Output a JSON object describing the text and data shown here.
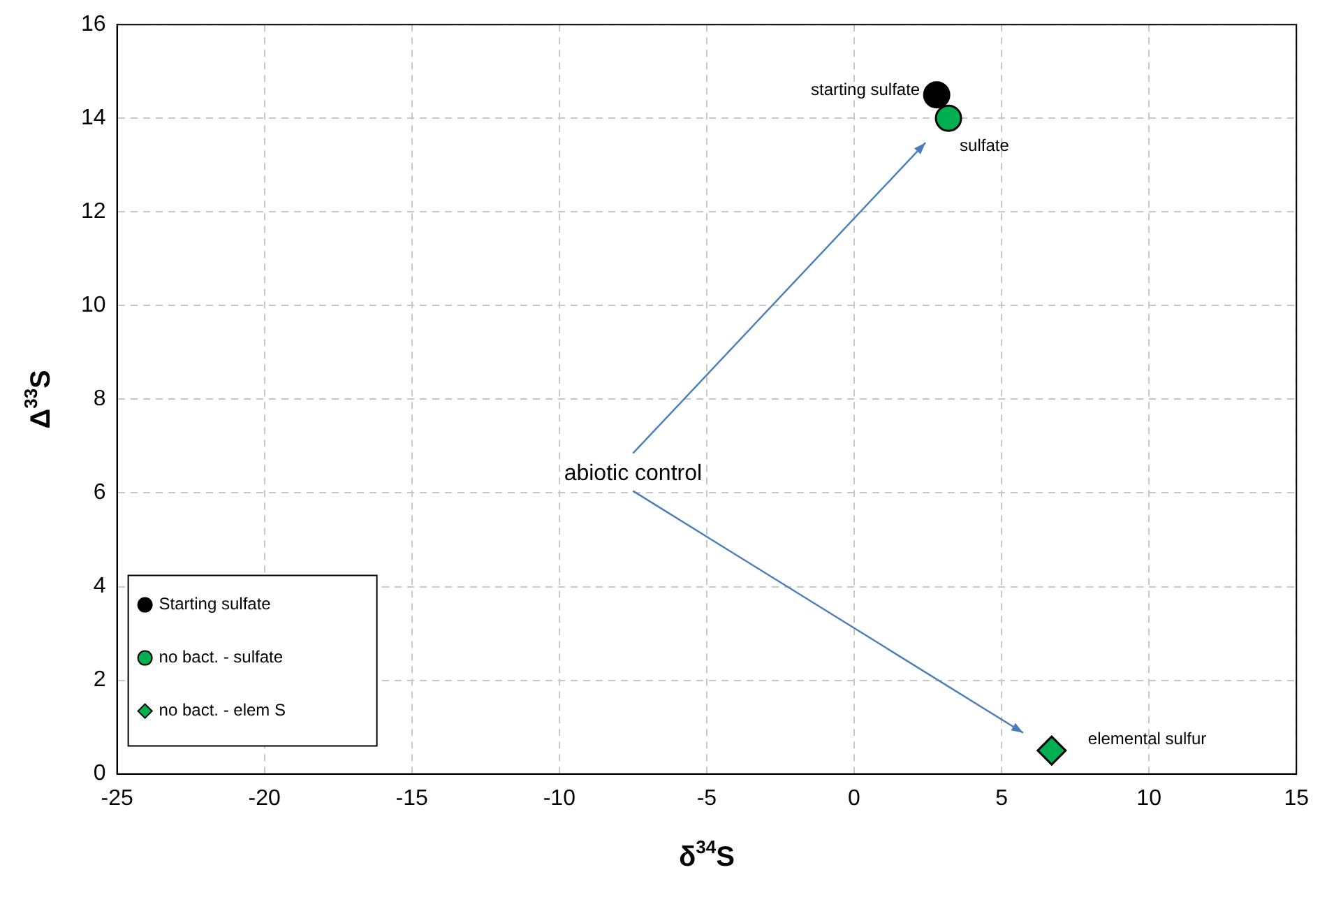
{
  "chart_data": {
    "type": "scatter",
    "xlabel": "δ$^{34}$S",
    "ylabel": "Δ$^{33}$S",
    "xlim": [
      -25,
      15
    ],
    "xticks": [
      -25,
      -20,
      -15,
      -10,
      -5,
      0,
      5,
      10,
      15
    ],
    "ylim": [
      0,
      16
    ],
    "yticks": [
      0,
      2,
      4,
      6,
      8,
      10,
      12,
      14,
      16
    ],
    "grid": true,
    "legend": "bottom left",
    "series": [
      {
        "name": "Starting sulfate",
        "color": "#000000",
        "marker": "circle",
        "x": [
          2.8
        ],
        "values": [
          14.5
        ]
      },
      {
        "name": "no bact. - sulfate",
        "color": "#00b050",
        "marker": "circle",
        "x": [
          3.2
        ],
        "values": [
          14.0
        ]
      },
      {
        "name": "no bact. - elem S",
        "color": "#00b050",
        "marker": "diamond",
        "x": [
          6.7
        ],
        "values": [
          0.5
        ]
      }
    ],
    "annotations": [
      {
        "text": "starting sulfate",
        "x": 2.8,
        "y": 14.5
      },
      {
        "text": "sulfate",
        "x": 3.2,
        "y": 14.0
      },
      {
        "text": "elemental sulfur",
        "x": 6.7,
        "y": 0.5
      },
      "abiotic control"
    ]
  }
}
